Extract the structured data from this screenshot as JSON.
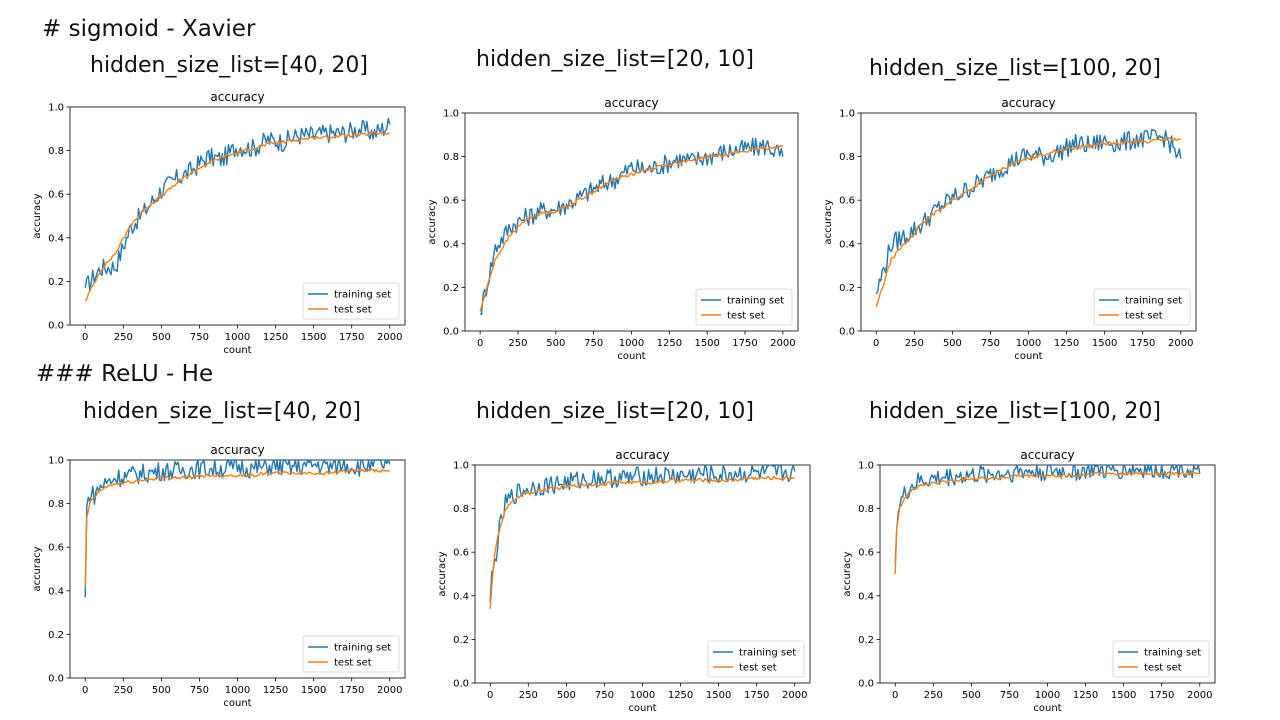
{
  "sections": [
    {
      "heading": "# sigmoid - Xavier"
    },
    {
      "heading": "### ReLU - He"
    }
  ],
  "subtitles": [
    "hidden_size_list=[40, 20]",
    "hidden_size_list=[20, 10]",
    "hidden_size_list=[100, 20]",
    "hidden_size_list=[40, 20]",
    "hidden_size_list=[20, 10]",
    "hidden_size_list=[100, 20]"
  ],
  "colors": {
    "training": "#1f77b4",
    "test": "#ff7f0e"
  },
  "chart_data": [
    {
      "type": "line",
      "title": "accuracy",
      "xlabel": "count",
      "ylabel": "accuracy",
      "xlim": [
        -100,
        2100
      ],
      "ylim": [
        0.0,
        1.0
      ],
      "xticks": [
        0,
        250,
        500,
        750,
        1000,
        1250,
        1500,
        1750,
        2000
      ],
      "yticks": [
        0.0,
        0.2,
        0.4,
        0.6,
        0.8,
        1.0
      ],
      "legend": "lower-right",
      "grid": false,
      "x": [
        0,
        100,
        200,
        300,
        400,
        500,
        600,
        700,
        800,
        900,
        1000,
        1100,
        1200,
        1300,
        1400,
        1500,
        1600,
        1700,
        1800,
        1900,
        2000
      ],
      "series": [
        {
          "name": "training set",
          "values": [
            0.17,
            0.26,
            0.27,
            0.45,
            0.53,
            0.62,
            0.67,
            0.71,
            0.77,
            0.76,
            0.82,
            0.81,
            0.85,
            0.84,
            0.87,
            0.87,
            0.88,
            0.88,
            0.9,
            0.88,
            0.92
          ]
        },
        {
          "name": "test set",
          "values": [
            0.11,
            0.25,
            0.33,
            0.46,
            0.54,
            0.59,
            0.65,
            0.7,
            0.74,
            0.77,
            0.79,
            0.81,
            0.83,
            0.84,
            0.85,
            0.86,
            0.86,
            0.87,
            0.87,
            0.88,
            0.88
          ]
        }
      ]
    },
    {
      "type": "line",
      "title": "accuracy",
      "xlabel": "count",
      "ylabel": "accuracy",
      "xlim": [
        -100,
        2100
      ],
      "ylim": [
        0.0,
        1.0
      ],
      "xticks": [
        0,
        250,
        500,
        750,
        1000,
        1250,
        1500,
        1750,
        2000
      ],
      "yticks": [
        0.0,
        0.2,
        0.4,
        0.6,
        0.8,
        1.0
      ],
      "legend": "lower-right",
      "grid": false,
      "x": [
        0,
        100,
        200,
        300,
        400,
        500,
        600,
        700,
        800,
        900,
        1000,
        1100,
        1200,
        1300,
        1400,
        1500,
        1600,
        1700,
        1800,
        1900,
        2000
      ],
      "series": [
        {
          "name": "training set",
          "values": [
            0.08,
            0.38,
            0.48,
            0.52,
            0.55,
            0.56,
            0.59,
            0.63,
            0.67,
            0.7,
            0.75,
            0.74,
            0.76,
            0.79,
            0.78,
            0.8,
            0.82,
            0.83,
            0.84,
            0.85,
            0.8
          ]
        },
        {
          "name": "test set",
          "values": [
            0.09,
            0.33,
            0.44,
            0.51,
            0.54,
            0.55,
            0.58,
            0.62,
            0.66,
            0.7,
            0.72,
            0.74,
            0.76,
            0.77,
            0.78,
            0.8,
            0.81,
            0.82,
            0.83,
            0.84,
            0.85
          ]
        }
      ]
    },
    {
      "type": "line",
      "title": "accuracy",
      "xlabel": "count",
      "ylabel": "accuracy",
      "xlim": [
        -100,
        2100
      ],
      "ylim": [
        0.0,
        1.0
      ],
      "xticks": [
        0,
        250,
        500,
        750,
        1000,
        1250,
        1500,
        1750,
        2000
      ],
      "yticks": [
        0.0,
        0.2,
        0.4,
        0.6,
        0.8,
        1.0
      ],
      "legend": "lower-right",
      "grid": false,
      "x": [
        0,
        100,
        200,
        300,
        400,
        500,
        600,
        700,
        800,
        900,
        1000,
        1100,
        1200,
        1300,
        1400,
        1500,
        1600,
        1700,
        1800,
        1900,
        2000
      ],
      "series": [
        {
          "name": "training set",
          "values": [
            0.17,
            0.4,
            0.44,
            0.49,
            0.56,
            0.61,
            0.65,
            0.69,
            0.74,
            0.78,
            0.81,
            0.8,
            0.82,
            0.86,
            0.85,
            0.87,
            0.86,
            0.88,
            0.88,
            0.89,
            0.79
          ]
        },
        {
          "name": "test set",
          "values": [
            0.11,
            0.33,
            0.41,
            0.49,
            0.55,
            0.6,
            0.64,
            0.69,
            0.73,
            0.77,
            0.79,
            0.81,
            0.83,
            0.84,
            0.85,
            0.86,
            0.86,
            0.87,
            0.87,
            0.88,
            0.88
          ]
        }
      ]
    },
    {
      "type": "line",
      "title": "accuracy",
      "xlabel": "count",
      "ylabel": "accuracy",
      "xlim": [
        -100,
        2100
      ],
      "ylim": [
        0.0,
        1.0
      ],
      "xticks": [
        0,
        250,
        500,
        750,
        1000,
        1250,
        1500,
        1750,
        2000
      ],
      "yticks": [
        0.0,
        0.2,
        0.4,
        0.6,
        0.8,
        1.0
      ],
      "legend": "lower-right",
      "grid": false,
      "x": [
        0,
        10,
        30,
        60,
        100,
        150,
        200,
        300,
        400,
        500,
        600,
        700,
        800,
        900,
        1000,
        1100,
        1200,
        1300,
        1400,
        1500,
        1600,
        1700,
        1800,
        1900,
        2000
      ],
      "series": [
        {
          "name": "training set",
          "values": [
            0.37,
            0.78,
            0.85,
            0.84,
            0.88,
            0.9,
            0.92,
            0.93,
            0.94,
            0.95,
            0.95,
            0.96,
            0.96,
            0.96,
            0.97,
            0.96,
            0.97,
            0.97,
            0.97,
            0.98,
            0.97,
            0.98,
            0.97,
            0.98,
            0.98
          ]
        },
        {
          "name": "test set",
          "values": [
            0.42,
            0.73,
            0.8,
            0.83,
            0.86,
            0.88,
            0.89,
            0.9,
            0.91,
            0.92,
            0.92,
            0.92,
            0.93,
            0.93,
            0.93,
            0.93,
            0.94,
            0.94,
            0.94,
            0.94,
            0.94,
            0.95,
            0.95,
            0.95,
            0.95
          ]
        }
      ]
    },
    {
      "type": "line",
      "title": "accuracy",
      "xlabel": "count",
      "ylabel": "accuracy",
      "xlim": [
        -100,
        2100
      ],
      "ylim": [
        0.0,
        1.0
      ],
      "xticks": [
        0,
        250,
        500,
        750,
        1000,
        1250,
        1500,
        1750,
        2000
      ],
      "yticks": [
        0.0,
        0.2,
        0.4,
        0.6,
        0.8,
        1.0
      ],
      "legend": "lower-right",
      "grid": false,
      "x": [
        0,
        10,
        30,
        60,
        100,
        150,
        200,
        300,
        400,
        500,
        600,
        700,
        800,
        900,
        1000,
        1100,
        1200,
        1300,
        1400,
        1500,
        1600,
        1700,
        1800,
        1900,
        2000
      ],
      "series": [
        {
          "name": "training set",
          "values": [
            0.37,
            0.48,
            0.55,
            0.7,
            0.82,
            0.86,
            0.88,
            0.9,
            0.91,
            0.92,
            0.93,
            0.94,
            0.94,
            0.94,
            0.95,
            0.95,
            0.95,
            0.95,
            0.96,
            0.95,
            0.96,
            0.96,
            0.96,
            0.96,
            0.97
          ]
        },
        {
          "name": "test set",
          "values": [
            0.34,
            0.45,
            0.6,
            0.7,
            0.79,
            0.84,
            0.86,
            0.88,
            0.89,
            0.9,
            0.91,
            0.91,
            0.92,
            0.92,
            0.92,
            0.92,
            0.93,
            0.93,
            0.93,
            0.93,
            0.93,
            0.94,
            0.94,
            0.94,
            0.94
          ]
        }
      ]
    },
    {
      "type": "line",
      "title": "accuracy",
      "xlabel": "count",
      "ylabel": "accuracy",
      "xlim": [
        -100,
        2100
      ],
      "ylim": [
        0.0,
        1.0
      ],
      "xticks": [
        0,
        250,
        500,
        750,
        1000,
        1250,
        1500,
        1750,
        2000
      ],
      "yticks": [
        0.0,
        0.2,
        0.4,
        0.6,
        0.8,
        1.0
      ],
      "legend": "lower-right",
      "grid": false,
      "x": [
        0,
        10,
        30,
        60,
        100,
        150,
        200,
        300,
        400,
        500,
        600,
        700,
        800,
        900,
        1000,
        1100,
        1200,
        1300,
        1400,
        1500,
        1600,
        1700,
        1800,
        1900,
        2000
      ],
      "series": [
        {
          "name": "training set",
          "values": [
            0.55,
            0.75,
            0.82,
            0.86,
            0.9,
            0.92,
            0.93,
            0.94,
            0.95,
            0.95,
            0.96,
            0.96,
            0.97,
            0.97,
            0.97,
            0.97,
            0.97,
            0.98,
            0.97,
            0.98,
            0.98,
            0.98,
            0.98,
            0.99,
            0.96
          ]
        },
        {
          "name": "test set",
          "values": [
            0.5,
            0.72,
            0.8,
            0.85,
            0.88,
            0.9,
            0.91,
            0.92,
            0.93,
            0.94,
            0.94,
            0.94,
            0.95,
            0.95,
            0.95,
            0.95,
            0.95,
            0.96,
            0.96,
            0.96,
            0.96,
            0.96,
            0.96,
            0.96,
            0.96
          ]
        }
      ]
    }
  ]
}
